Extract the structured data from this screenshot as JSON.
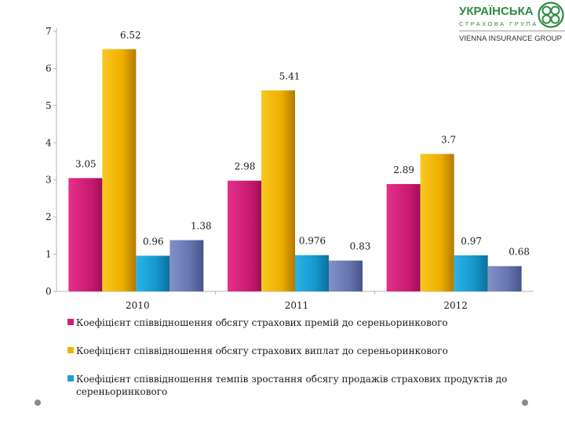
{
  "logo": {
    "title": "УКРАЇНСЬКА",
    "subtitle": "СТРАХОВА ГРУПА",
    "group": "VIENNA INSURANCE GROUP"
  },
  "chart_data": {
    "type": "bar",
    "categories": [
      "2010",
      "2011",
      "2012"
    ],
    "ylim": [
      0,
      7
    ],
    "yticks": [
      "0",
      "1",
      "2",
      "3",
      "4",
      "5",
      "6",
      "7"
    ],
    "grid": false,
    "legend_position": "bottom",
    "series": [
      {
        "name": "Коефіцієнт співвідношення обсягу страхових премій до сереньоринкового",
        "values": [
          3.05,
          2.98,
          2.89
        ],
        "labels": [
          "3.05",
          "2.98",
          "2.89"
        ],
        "color": "#d81b7a"
      },
      {
        "name": "Коефіцієнт співвідношення обсягу страхових виплат до сереньоринкового",
        "values": [
          6.52,
          5.41,
          3.7
        ],
        "labels": [
          "6.52",
          "5.41",
          "3.7"
        ],
        "color": "#f0b400"
      },
      {
        "name": "Коефіцієнт співвідношення темпів зростання обсягу продажів страхових продуктів до сереньоринкового",
        "values": [
          0.96,
          0.976,
          0.97
        ],
        "labels": [
          "0.96",
          "0.976",
          "0.97"
        ],
        "color": "#1aa0d6"
      },
      {
        "name": "",
        "values": [
          1.38,
          0.83,
          0.68
        ],
        "labels": [
          "1.38",
          "0.83",
          "0.68"
        ],
        "color": "#6b7bb5"
      }
    ]
  }
}
